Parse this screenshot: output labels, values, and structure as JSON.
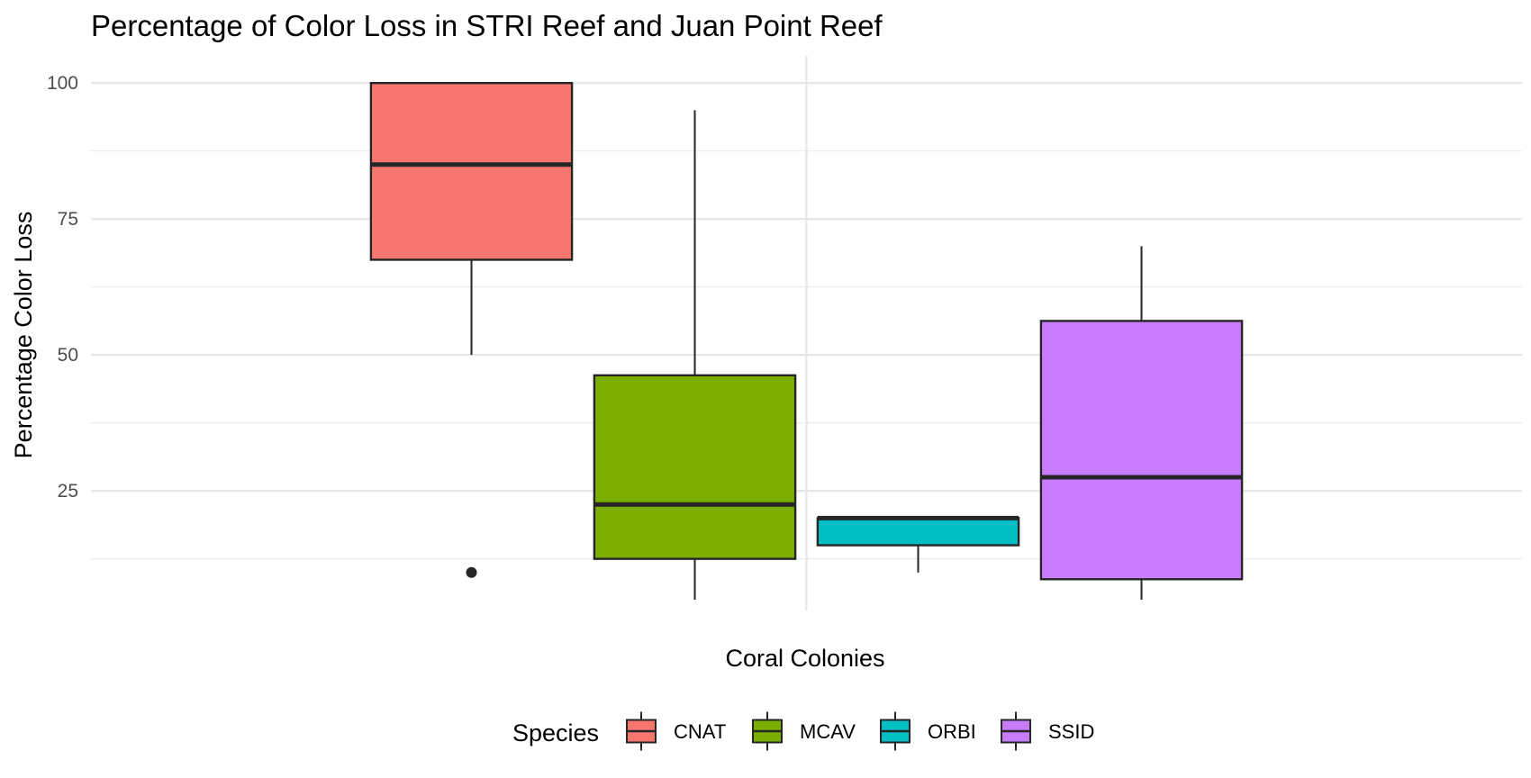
{
  "chart_data": {
    "type": "boxplot",
    "title": "Percentage of Color Loss in STRI Reef and Juan Point Reef",
    "xlabel": "Coral Colonies",
    "ylabel": "Percentage Color Loss",
    "ylim": [
      3,
      105
    ],
    "yticks": [
      25,
      50,
      75,
      100
    ],
    "y_minor_ticks": [
      12.5,
      37.5,
      62.5,
      87.5
    ],
    "grid": true,
    "legend": {
      "title": "Species",
      "position": "bottom"
    },
    "series": [
      {
        "name": "CNAT",
        "color": "#F8766D",
        "whisker_low": 50,
        "q1": 67.5,
        "median": 85,
        "q3": 100,
        "whisker_high": 100,
        "outliers": [
          10
        ]
      },
      {
        "name": "MCAV",
        "color": "#7CAE00",
        "whisker_low": 5,
        "q1": 12.5,
        "median": 22.5,
        "q3": 46.25,
        "whisker_high": 95,
        "outliers": []
      },
      {
        "name": "ORBI",
        "color": "#00BFC4",
        "whisker_low": 10,
        "q1": 15,
        "median": 20,
        "q3": 20,
        "whisker_high": 20,
        "outliers": []
      },
      {
        "name": "SSID",
        "color": "#C77CFF",
        "whisker_low": 5,
        "q1": 8.75,
        "median": 27.5,
        "q3": 56.25,
        "whisker_high": 70,
        "outliers": []
      }
    ]
  }
}
